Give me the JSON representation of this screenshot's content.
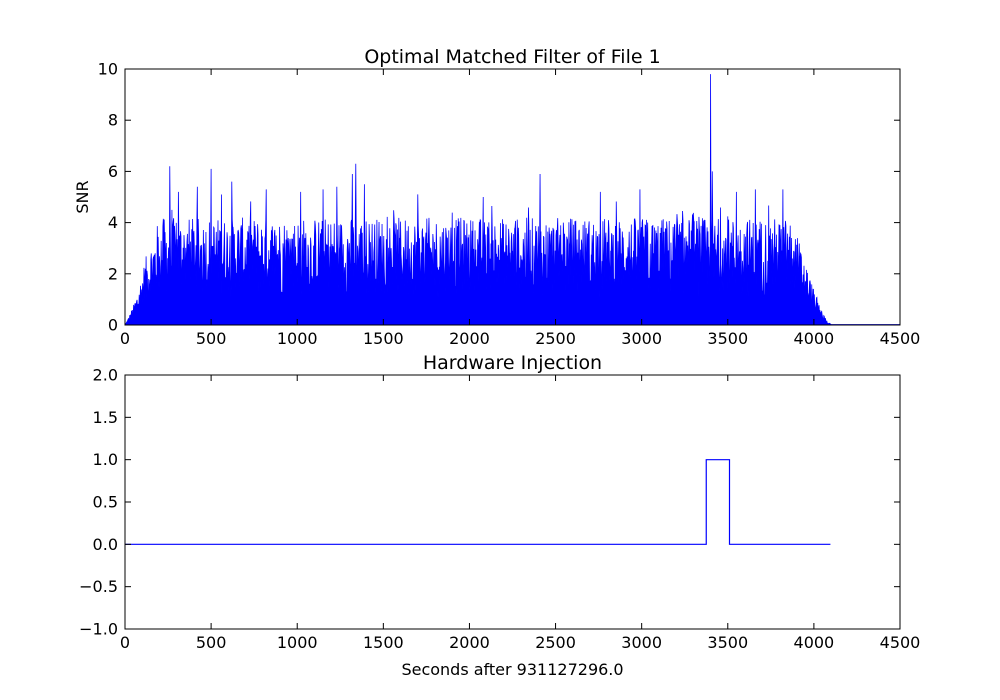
{
  "chart_data": [
    {
      "type": "area",
      "title": "Optimal Matched Filter of File 1",
      "xlabel": "",
      "ylabel": "SNR",
      "xlim": [
        0,
        4500
      ],
      "ylim": [
        0,
        10
      ],
      "xticks": [
        0,
        500,
        1000,
        1500,
        2000,
        2500,
        3000,
        3500,
        4000,
        4500
      ],
      "yticks": [
        0,
        2,
        4,
        6,
        8,
        10
      ],
      "xtick_labels": [
        "0",
        "500",
        "1000",
        "1500",
        "2000",
        "2500",
        "3000",
        "3500",
        "4000",
        "4500"
      ],
      "ytick_labels": [
        "0",
        "2",
        "4",
        "6",
        "8",
        "10"
      ],
      "grid": false,
      "color": "#0000ff",
      "envelope": {
        "x": [
          0,
          20,
          50,
          80,
          110,
          140,
          170,
          200,
          3850,
          3900,
          3950,
          4000,
          4050,
          4080,
          4100,
          4500
        ],
        "y": [
          0,
          0.3,
          0.8,
          1.5,
          2.4,
          3.1,
          3.6,
          4.2,
          4.2,
          3.6,
          2.5,
          1.4,
          0.5,
          0.15,
          0.02,
          0.02
        ]
      },
      "peaks": {
        "x": [
          260,
          310,
          420,
          500,
          560,
          620,
          820,
          1020,
          1150,
          1230,
          1320,
          1340,
          1390,
          1700,
          2080,
          2410,
          2760,
          2990,
          3400,
          3410,
          3550,
          3660,
          3820
        ],
        "y": [
          6.2,
          5.2,
          5.4,
          6.1,
          5.1,
          5.6,
          5.3,
          5.2,
          5.3,
          5.4,
          5.9,
          6.3,
          5.5,
          5.1,
          5.0,
          5.9,
          5.2,
          5.3,
          9.8,
          6.0,
          5.2,
          5.3,
          5.3
        ]
      }
    },
    {
      "type": "line",
      "title": "Hardware Injection",
      "xlabel": "Seconds after 931127296.0",
      "ylabel": "",
      "xlim": [
        0,
        4500
      ],
      "ylim": [
        -1.0,
        2.0
      ],
      "xticks": [
        0,
        500,
        1000,
        1500,
        2000,
        2500,
        3000,
        3500,
        4000,
        4500
      ],
      "yticks": [
        -1.0,
        -0.5,
        0.0,
        0.5,
        1.0,
        1.5,
        2.0
      ],
      "xtick_labels": [
        "0",
        "500",
        "1000",
        "1500",
        "2000",
        "2500",
        "3000",
        "3500",
        "4000",
        "4500"
      ],
      "ytick_labels": [
        "−1.0",
        "−0.5",
        "0.0",
        "0.5",
        "1.0",
        "1.5",
        "2.0"
      ],
      "grid": false,
      "color": "#0000ff",
      "x": [
        0,
        3375,
        3375,
        3510,
        3510,
        4096
      ],
      "y": [
        0,
        0,
        1,
        1,
        0,
        0
      ]
    }
  ]
}
